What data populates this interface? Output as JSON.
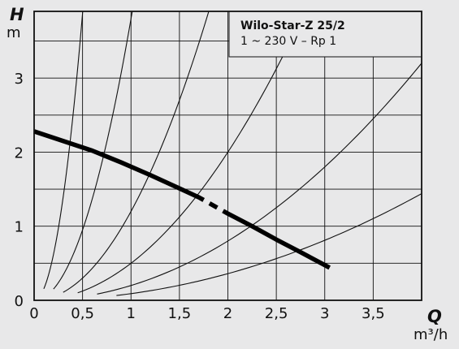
{
  "chart_data": {
    "type": "line",
    "title": "Wilo-Star-Z 25/2",
    "subtitle": "1 ~ 230 V – Rp 1",
    "x_axis": {
      "symbol": "Q",
      "unit": "m³/h",
      "range": [
        0,
        4
      ],
      "tick_values": [
        0,
        0.5,
        1,
        1.5,
        2,
        2.5,
        3,
        3.5
      ],
      "tick_labels": [
        "0",
        "0,5",
        "1",
        "1,5",
        "2",
        "2,5",
        "3",
        "3,5"
      ]
    },
    "y_axis": {
      "symbol": "H",
      "unit": "m",
      "range": [
        0,
        3.9
      ],
      "tick_values": [
        0,
        1,
        2,
        3
      ],
      "tick_labels": [
        "0",
        "1",
        "2",
        "3"
      ]
    },
    "grid": true,
    "pump_curve": {
      "points": [
        [
          0,
          2.28
        ],
        [
          0.3,
          2.15
        ],
        [
          0.6,
          2.02
        ],
        [
          0.9,
          1.86
        ],
        [
          1.2,
          1.69
        ],
        [
          1.5,
          1.51
        ],
        [
          1.7,
          1.39
        ],
        [
          1.85,
          1.28
        ],
        [
          2.0,
          1.17
        ],
        [
          2.25,
          1.0
        ],
        [
          2.5,
          0.82
        ],
        [
          2.75,
          0.65
        ],
        [
          3.05,
          0.44
        ]
      ],
      "gap_x": [
        1.75,
        1.95
      ],
      "color": "#000000"
    },
    "system_curves": {
      "coefficients": [
        15.5,
        3.8,
        1.2,
        0.5,
        0.2,
        0.09
      ],
      "start_x": [
        0.1,
        0.2,
        0.3,
        0.45,
        0.65,
        0.85
      ],
      "color": "#111111"
    }
  }
}
